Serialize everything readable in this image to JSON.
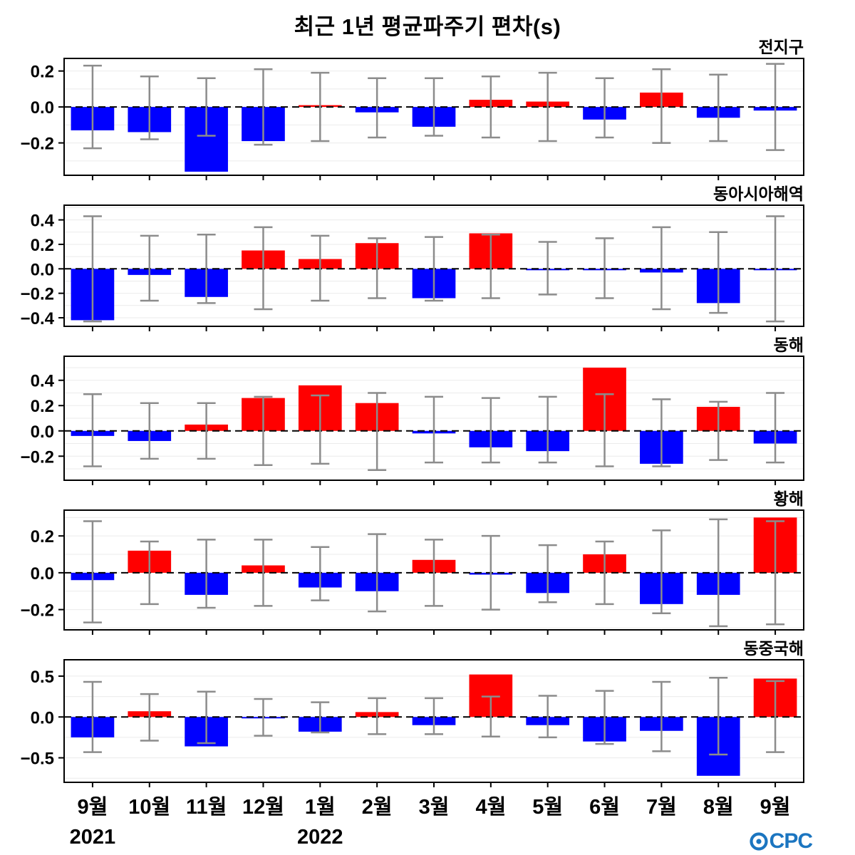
{
  "title": "최근 1년 평균파주기 편차(s)",
  "logo": {
    "text": "OCPC"
  },
  "x_axis": {
    "months": [
      "9월",
      "10월",
      "11월",
      "12월",
      "1월",
      "2월",
      "3월",
      "4월",
      "5월",
      "6월",
      "7월",
      "8월",
      "9월"
    ],
    "years": [
      {
        "label": "2021",
        "month_index": 0
      },
      {
        "label": "2022",
        "month_index": 4
      }
    ]
  },
  "style": {
    "positive_color": "#ff0000",
    "negative_color": "#0000ff",
    "errorbar_color": "#8c8c8c",
    "grid_color": "#ebebeb",
    "zero_line_color": "#000000",
    "logo_color": "#1b75c0"
  },
  "chart_data": [
    {
      "type": "bar",
      "title": "전지구",
      "categories": [
        "9월",
        "10월",
        "11월",
        "12월",
        "1월",
        "2월",
        "3월",
        "4월",
        "5월",
        "6월",
        "7월",
        "8월",
        "9월"
      ],
      "values": [
        -0.13,
        -0.14,
        -0.36,
        -0.19,
        0.01,
        -0.03,
        -0.11,
        0.04,
        0.03,
        -0.07,
        0.08,
        -0.06,
        -0.02
      ],
      "error_high": [
        0.23,
        0.17,
        0.16,
        0.21,
        0.19,
        0.16,
        0.16,
        0.17,
        0.19,
        0.16,
        0.21,
        0.18,
        0.24
      ],
      "error_low": [
        -0.23,
        -0.18,
        -0.16,
        -0.21,
        -0.19,
        -0.17,
        -0.16,
        -0.17,
        -0.19,
        -0.17,
        -0.2,
        -0.19,
        -0.24
      ],
      "yticks": [
        0.2,
        0.0,
        -0.2
      ],
      "ylim": [
        -0.38,
        0.27
      ],
      "grid_step": 0.1
    },
    {
      "type": "bar",
      "title": "동아시아해역",
      "categories": [
        "9월",
        "10월",
        "11월",
        "12월",
        "1월",
        "2월",
        "3월",
        "4월",
        "5월",
        "6월",
        "7월",
        "8월",
        "9월"
      ],
      "values": [
        -0.42,
        -0.05,
        -0.23,
        0.15,
        0.08,
        0.21,
        -0.24,
        0.29,
        -0.01,
        -0.01,
        -0.03,
        -0.28,
        -0.01
      ],
      "error_high": [
        0.43,
        0.27,
        0.28,
        0.34,
        0.27,
        0.25,
        0.26,
        0.28,
        0.22,
        0.25,
        0.34,
        0.3,
        0.43
      ],
      "error_low": [
        -0.43,
        -0.26,
        -0.28,
        -0.33,
        -0.26,
        -0.24,
        -0.26,
        -0.24,
        -0.21,
        -0.24,
        -0.33,
        -0.36,
        -0.43
      ],
      "yticks": [
        0.4,
        0.2,
        0.0,
        -0.2,
        -0.4
      ],
      "ylim": [
        -0.47,
        0.52
      ],
      "grid_step": 0.1
    },
    {
      "type": "bar",
      "title": "동해",
      "categories": [
        "9월",
        "10월",
        "11월",
        "12월",
        "1월",
        "2월",
        "3월",
        "4월",
        "5월",
        "6월",
        "7월",
        "8월",
        "9월"
      ],
      "values": [
        -0.04,
        -0.08,
        0.05,
        0.26,
        0.36,
        0.22,
        -0.02,
        -0.13,
        -0.16,
        0.5,
        -0.26,
        0.19,
        -0.1
      ],
      "error_high": [
        0.29,
        0.22,
        0.22,
        0.27,
        0.28,
        0.3,
        0.27,
        0.26,
        0.27,
        0.29,
        0.25,
        0.23,
        0.3
      ],
      "error_low": [
        -0.28,
        -0.22,
        -0.22,
        -0.27,
        -0.26,
        -0.31,
        -0.25,
        -0.25,
        -0.25,
        -0.28,
        -0.28,
        -0.23,
        -0.25
      ],
      "yticks": [
        0.4,
        0.2,
        0.0,
        -0.2
      ],
      "ylim": [
        -0.39,
        0.59
      ],
      "grid_step": 0.1
    },
    {
      "type": "bar",
      "title": "황해",
      "categories": [
        "9월",
        "10월",
        "11월",
        "12월",
        "1월",
        "2월",
        "3월",
        "4월",
        "5월",
        "6월",
        "7월",
        "8월",
        "9월"
      ],
      "values": [
        -0.04,
        0.12,
        -0.12,
        0.04,
        -0.08,
        -0.1,
        0.07,
        -0.01,
        -0.11,
        0.1,
        -0.17,
        -0.12,
        0.3
      ],
      "error_high": [
        0.28,
        0.17,
        0.18,
        0.18,
        0.14,
        0.21,
        0.18,
        0.2,
        0.15,
        0.17,
        0.23,
        0.29,
        0.28
      ],
      "error_low": [
        -0.27,
        -0.17,
        -0.19,
        -0.18,
        -0.15,
        -0.21,
        -0.18,
        -0.2,
        -0.16,
        -0.17,
        -0.22,
        -0.29,
        -0.28
      ],
      "yticks": [
        0.2,
        0.0,
        -0.2
      ],
      "ylim": [
        -0.31,
        0.34
      ],
      "grid_step": 0.1
    },
    {
      "type": "bar",
      "title": "동중국해",
      "categories": [
        "9월",
        "10월",
        "11월",
        "12월",
        "1월",
        "2월",
        "3월",
        "4월",
        "5월",
        "6월",
        "7월",
        "8월",
        "9월"
      ],
      "values": [
        -0.25,
        0.07,
        -0.36,
        -0.01,
        -0.18,
        0.06,
        -0.1,
        0.52,
        -0.1,
        -0.3,
        -0.17,
        -0.72,
        0.47
      ],
      "error_high": [
        0.43,
        0.28,
        0.31,
        0.22,
        0.18,
        0.23,
        0.23,
        0.25,
        0.26,
        0.32,
        0.43,
        0.48,
        0.44
      ],
      "error_low": [
        -0.43,
        -0.29,
        -0.32,
        -0.23,
        -0.19,
        -0.21,
        -0.21,
        -0.24,
        -0.25,
        -0.33,
        -0.42,
        -0.46,
        -0.43
      ],
      "yticks": [
        0.5,
        0.0,
        -0.5
      ],
      "ylim": [
        -0.8,
        0.7
      ],
      "grid_step": 0.25
    }
  ]
}
